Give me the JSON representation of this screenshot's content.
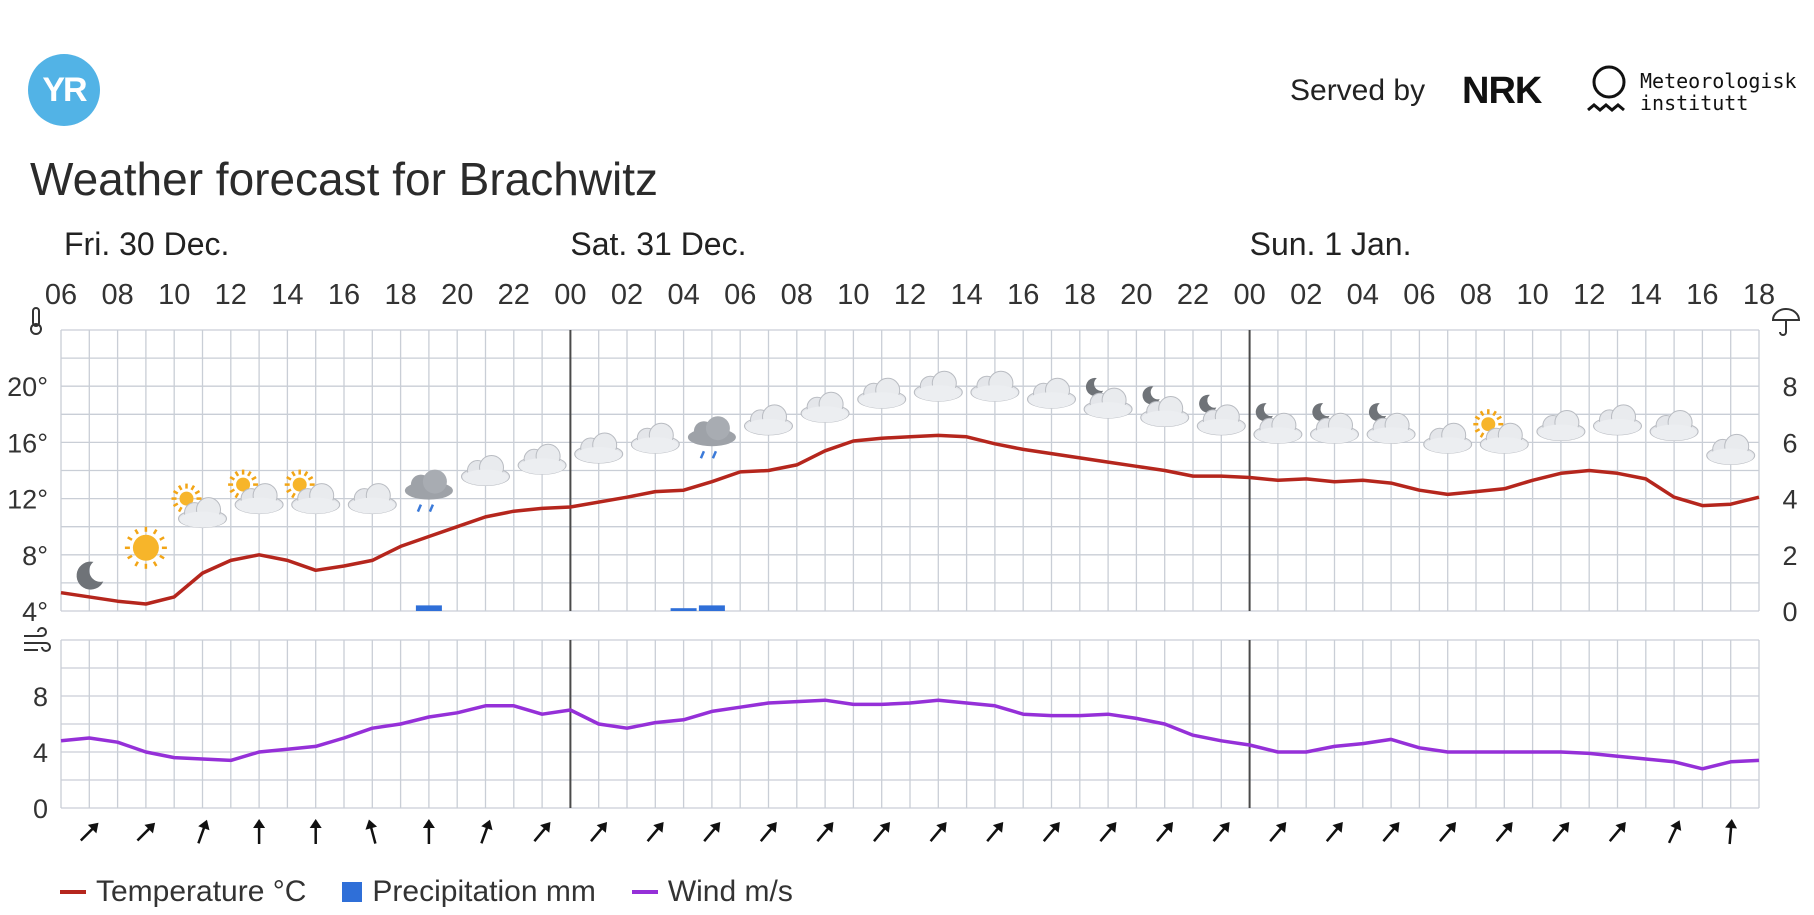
{
  "header": {
    "logo_text": "YR",
    "served_by": "Served by",
    "nrk_logo_text": "NRK",
    "met_name": "Meteorologisk\ninstitutt",
    "title": "Weather forecast for Brachwitz"
  },
  "legend": {
    "temperature": "Temperature °C",
    "precipitation": "Precipitation mm",
    "wind": "Wind m/s"
  },
  "colors": {
    "temperature": "#b5261d",
    "precipitation": "#2f6fd8",
    "wind": "#9530d8",
    "grid": "#c9ced6",
    "day_separator": "#4a4a4a"
  },
  "chart_data": {
    "type": "line",
    "day_labels": [
      {
        "label": "Fri. 30 Dec.",
        "hour_index": 0
      },
      {
        "label": "Sat. 31 Dec.",
        "hour_index": 18
      },
      {
        "label": "Sun. 1 Jan.",
        "hour_index": 42
      }
    ],
    "hour_ticks": [
      "06",
      "08",
      "10",
      "12",
      "14",
      "16",
      "18",
      "20",
      "22",
      "00",
      "02",
      "04",
      "06",
      "08",
      "10",
      "12",
      "14",
      "16",
      "18",
      "20",
      "22",
      "00",
      "02",
      "04",
      "06",
      "08",
      "10",
      "12",
      "14",
      "16",
      "18"
    ],
    "day_boundaries_hour_index": [
      18,
      42
    ],
    "temperature_axis": {
      "unit": "°C",
      "ticks": [
        "4°",
        "8°",
        "12°",
        "16°",
        "20°"
      ],
      "range": [
        4,
        24
      ]
    },
    "precipitation_axis": {
      "unit": "mm",
      "ticks": [
        "0",
        "2",
        "4",
        "6",
        "8"
      ],
      "range": [
        0,
        10
      ]
    },
    "wind_axis": {
      "unit": "m/s",
      "ticks": [
        "0",
        "4",
        "8"
      ],
      "range": [
        0,
        12
      ]
    },
    "temperature": {
      "name": "Temperature °C",
      "x_hours": [
        0,
        2,
        3,
        4,
        5,
        6,
        7,
        8,
        9,
        10,
        11,
        12,
        13,
        14,
        15,
        16,
        17,
        18,
        20,
        21,
        22,
        23,
        24,
        25,
        26,
        27,
        28,
        29,
        30,
        31,
        32,
        33,
        34,
        35,
        36,
        37,
        38,
        39,
        40,
        41,
        42,
        43,
        44,
        45,
        46,
        47,
        48,
        49,
        50,
        51,
        52,
        53,
        54,
        55,
        56,
        57,
        58,
        59,
        60
      ],
      "values": [
        5.3,
        4.7,
        4.5,
        5.0,
        6.7,
        7.6,
        8.0,
        7.6,
        6.9,
        7.2,
        7.6,
        8.6,
        9.3,
        10.0,
        10.7,
        11.1,
        11.3,
        11.4,
        12.1,
        12.5,
        12.6,
        13.2,
        13.9,
        14.0,
        14.4,
        15.4,
        16.1,
        16.3,
        16.4,
        16.5,
        16.4,
        15.9,
        15.5,
        15.2,
        14.9,
        14.6,
        14.3,
        14.0,
        13.6,
        13.6,
        13.5,
        13.3,
        13.4,
        13.2,
        13.3,
        13.1,
        12.6,
        12.3,
        12.5,
        12.7,
        13.3,
        13.8,
        14.0,
        13.8,
        13.4,
        12.1,
        11.5,
        11.6,
        12.1
      ]
    },
    "precipitation": {
      "name": "Precipitation mm",
      "bars": [
        {
          "hour": 13,
          "value": 0.2
        },
        {
          "hour": 22,
          "value": 0.1
        },
        {
          "hour": 23,
          "value": 0.2
        }
      ]
    },
    "wind": {
      "name": "Wind m/s",
      "x_hours": [
        0,
        1,
        2,
        3,
        4,
        5,
        6,
        7,
        8,
        9,
        10,
        11,
        12,
        13,
        14,
        15,
        16,
        17,
        18,
        19,
        20,
        21,
        22,
        23,
        24,
        25,
        26,
        27,
        28,
        29,
        30,
        31,
        32,
        33,
        34,
        35,
        36,
        37,
        38,
        39,
        40,
        41,
        42,
        43,
        44,
        45,
        46,
        47,
        48,
        49,
        50,
        51,
        52,
        53,
        54,
        55,
        56,
        57,
        58,
        59,
        60
      ],
      "values": [
        4.8,
        5.0,
        4.7,
        4.0,
        3.6,
        3.5,
        3.4,
        4.0,
        4.2,
        4.4,
        5.0,
        5.7,
        6.0,
        6.5,
        6.8,
        7.3,
        7.3,
        6.7,
        7.0,
        6.0,
        5.7,
        6.1,
        6.3,
        6.9,
        7.2,
        7.5,
        7.6,
        7.7,
        7.4,
        7.4,
        7.5,
        7.7,
        7.5,
        7.3,
        6.7,
        6.6,
        6.6,
        6.7,
        6.4,
        6.0,
        5.2,
        4.8,
        4.5,
        4.0,
        4.0,
        4.4,
        4.6,
        4.9,
        4.3,
        4.0,
        4.0,
        4.0,
        4.0,
        4.0,
        3.9,
        3.7,
        3.5,
        3.3,
        2.8,
        3.3,
        3.4
      ]
    },
    "weather_symbols": [
      {
        "hour": 1,
        "icon": "moon-icon",
        "temp": 6.5
      },
      {
        "hour": 3,
        "icon": "sun-icon",
        "temp": 8.5
      },
      {
        "hour": 5,
        "icon": "partly-cloudy-day-icon",
        "temp": 11.0
      },
      {
        "hour": 7,
        "icon": "partly-cloudy-day-icon",
        "temp": 12.0
      },
      {
        "hour": 9,
        "icon": "partly-cloudy-day-icon",
        "temp": 12.0
      },
      {
        "hour": 11,
        "icon": "cloud-icon",
        "temp": 12.0
      },
      {
        "hour": 13,
        "icon": "rain-cloud-icon",
        "temp": 13.0
      },
      {
        "hour": 15,
        "icon": "cloud-icon",
        "temp": 14.0
      },
      {
        "hour": 17,
        "icon": "cloud-icon",
        "temp": 14.8
      },
      {
        "hour": 19,
        "icon": "cloud-icon",
        "temp": 15.6
      },
      {
        "hour": 21,
        "icon": "cloud-icon",
        "temp": 16.3
      },
      {
        "hour": 23,
        "icon": "rain-cloud-icon",
        "temp": 16.8
      },
      {
        "hour": 25,
        "icon": "cloud-icon",
        "temp": 17.6
      },
      {
        "hour": 27,
        "icon": "cloud-icon",
        "temp": 18.5
      },
      {
        "hour": 29,
        "icon": "cloud-icon",
        "temp": 19.5
      },
      {
        "hour": 31,
        "icon": "cloud-icon",
        "temp": 20.0
      },
      {
        "hour": 33,
        "icon": "cloud-icon",
        "temp": 20.0
      },
      {
        "hour": 35,
        "icon": "cloud-icon",
        "temp": 19.5
      },
      {
        "hour": 37,
        "icon": "partly-cloudy-night-icon",
        "temp": 18.8
      },
      {
        "hour": 39,
        "icon": "partly-cloudy-night-icon",
        "temp": 18.2
      },
      {
        "hour": 41,
        "icon": "partly-cloudy-night-icon",
        "temp": 17.6
      },
      {
        "hour": 43,
        "icon": "partly-cloudy-night-icon",
        "temp": 17.0
      },
      {
        "hour": 45,
        "icon": "partly-cloudy-night-icon",
        "temp": 17.0
      },
      {
        "hour": 47,
        "icon": "partly-cloudy-night-icon",
        "temp": 17.0
      },
      {
        "hour": 49,
        "icon": "cloud-icon",
        "temp": 16.3
      },
      {
        "hour": 51,
        "icon": "partly-cloudy-day-icon",
        "temp": 16.3
      },
      {
        "hour": 53,
        "icon": "cloud-icon",
        "temp": 17.2
      },
      {
        "hour": 55,
        "icon": "cloud-icon",
        "temp": 17.6
      },
      {
        "hour": 57,
        "icon": "cloud-icon",
        "temp": 17.2
      },
      {
        "hour": 59,
        "icon": "cloud-icon",
        "temp": 15.5
      }
    ],
    "wind_arrows": [
      {
        "hour": 1,
        "direction_deg": 45
      },
      {
        "hour": 3,
        "direction_deg": 45
      },
      {
        "hour": 5,
        "direction_deg": 20
      },
      {
        "hour": 7,
        "direction_deg": 0
      },
      {
        "hour": 9,
        "direction_deg": 0
      },
      {
        "hour": 11,
        "direction_deg": -15
      },
      {
        "hour": 13,
        "direction_deg": 0
      },
      {
        "hour": 15,
        "direction_deg": 20
      },
      {
        "hour": 17,
        "direction_deg": 40
      },
      {
        "hour": 19,
        "direction_deg": 40
      },
      {
        "hour": 21,
        "direction_deg": 40
      },
      {
        "hour": 23,
        "direction_deg": 40
      },
      {
        "hour": 25,
        "direction_deg": 40
      },
      {
        "hour": 27,
        "direction_deg": 40
      },
      {
        "hour": 29,
        "direction_deg": 40
      },
      {
        "hour": 31,
        "direction_deg": 40
      },
      {
        "hour": 33,
        "direction_deg": 40
      },
      {
        "hour": 35,
        "direction_deg": 40
      },
      {
        "hour": 37,
        "direction_deg": 40
      },
      {
        "hour": 39,
        "direction_deg": 40
      },
      {
        "hour": 41,
        "direction_deg": 40
      },
      {
        "hour": 43,
        "direction_deg": 40
      },
      {
        "hour": 45,
        "direction_deg": 40
      },
      {
        "hour": 47,
        "direction_deg": 40
      },
      {
        "hour": 49,
        "direction_deg": 40
      },
      {
        "hour": 51,
        "direction_deg": 40
      },
      {
        "hour": 53,
        "direction_deg": 40
      },
      {
        "hour": 55,
        "direction_deg": 40
      },
      {
        "hour": 57,
        "direction_deg": 25
      },
      {
        "hour": 59,
        "direction_deg": 5
      }
    ]
  }
}
